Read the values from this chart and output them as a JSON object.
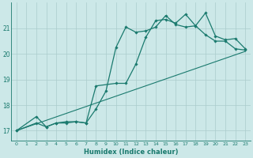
{
  "xlabel": "Humidex (Indice chaleur)",
  "bg_color": "#cce8e8",
  "line_color": "#1a7a6e",
  "grid_color": "#aacccc",
  "xlim": [
    -0.5,
    23.5
  ],
  "ylim": [
    16.6,
    22.0
  ],
  "xticks": [
    0,
    1,
    2,
    3,
    4,
    5,
    6,
    7,
    8,
    9,
    10,
    11,
    12,
    13,
    14,
    15,
    16,
    17,
    18,
    19,
    20,
    21,
    22,
    23
  ],
  "yticks": [
    17,
    18,
    19,
    20,
    21
  ],
  "line1_x": [
    0,
    2,
    3,
    4,
    5,
    6,
    7,
    8,
    9,
    10,
    11,
    12,
    13,
    14,
    15,
    16,
    17,
    18,
    19,
    20,
    21,
    22,
    23
  ],
  "line1_y": [
    17.0,
    17.55,
    17.15,
    17.3,
    17.3,
    17.35,
    17.3,
    17.85,
    18.55,
    20.25,
    21.05,
    20.85,
    20.9,
    21.05,
    21.5,
    21.15,
    21.05,
    21.1,
    21.6,
    20.7,
    20.55,
    20.6,
    20.2
  ],
  "line2_x": [
    0,
    2,
    3,
    4,
    5,
    6,
    7,
    8,
    10,
    11,
    12,
    13,
    14,
    15,
    16,
    17,
    18,
    19,
    20,
    21,
    22,
    23
  ],
  "line2_y": [
    17.0,
    17.3,
    17.15,
    17.3,
    17.35,
    17.35,
    17.3,
    18.75,
    18.85,
    18.85,
    19.6,
    20.65,
    21.3,
    21.35,
    21.2,
    21.55,
    21.1,
    20.75,
    20.5,
    20.5,
    20.2,
    20.15
  ],
  "line3_x": [
    0,
    23
  ],
  "line3_y": [
    17.0,
    20.1
  ]
}
